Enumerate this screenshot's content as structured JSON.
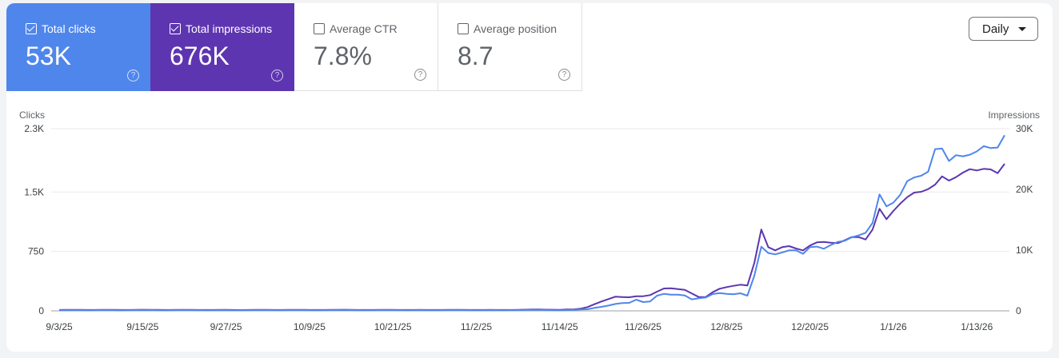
{
  "metrics": [
    {
      "label": "Total clicks",
      "value": "53K",
      "checked": true,
      "color": "#4f86ec"
    },
    {
      "label": "Total impressions",
      "value": "676K",
      "checked": true,
      "color": "#5e35b1"
    },
    {
      "label": "Average CTR",
      "value": "7.8%",
      "checked": false
    },
    {
      "label": "Average position",
      "value": "8.7",
      "checked": false
    }
  ],
  "help_glyph": "?",
  "granularity": {
    "selected": "Daily"
  },
  "chart_data": {
    "type": "line",
    "left_axis": {
      "label": "Clicks",
      "ticks": [
        "0",
        "750",
        "1.5K",
        "2.3K"
      ],
      "tick_values": [
        0,
        750,
        1500,
        2300
      ],
      "range": [
        0,
        2300
      ]
    },
    "right_axis": {
      "label": "Impressions",
      "ticks": [
        "0",
        "10K",
        "20K",
        "30K"
      ],
      "tick_values": [
        0,
        10000,
        20000,
        30000
      ],
      "range": [
        0,
        30000
      ]
    },
    "x_ticks": [
      "9/3/25",
      "9/15/25",
      "9/27/25",
      "10/9/25",
      "10/21/25",
      "11/2/25",
      "11/14/25",
      "11/26/25",
      "12/8/25",
      "12/20/25",
      "1/1/26",
      "1/13/26"
    ],
    "grid": true,
    "dates": [
      "9/3/25",
      "9/4/25",
      "9/5/25",
      "9/6/25",
      "9/7/25",
      "9/8/25",
      "9/9/25",
      "9/10/25",
      "9/11/25",
      "9/12/25",
      "9/13/25",
      "9/14/25",
      "9/15/25",
      "9/16/25",
      "9/17/25",
      "9/18/25",
      "9/19/25",
      "9/20/25",
      "9/21/25",
      "9/22/25",
      "9/23/25",
      "9/24/25",
      "9/25/25",
      "9/26/25",
      "9/27/25",
      "9/28/25",
      "9/29/25",
      "9/30/25",
      "10/1/25",
      "10/2/25",
      "10/3/25",
      "10/4/25",
      "10/5/25",
      "10/6/25",
      "10/7/25",
      "10/8/25",
      "10/9/25",
      "10/10/25",
      "10/11/25",
      "10/12/25",
      "10/13/25",
      "10/14/25",
      "10/15/25",
      "10/16/25",
      "10/17/25",
      "10/18/25",
      "10/19/25",
      "10/20/25",
      "10/21/25",
      "10/22/25",
      "10/23/25",
      "10/24/25",
      "10/25/25",
      "10/26/25",
      "10/27/25",
      "10/28/25",
      "10/29/25",
      "10/30/25",
      "10/31/25",
      "11/1/25",
      "11/2/25",
      "11/3/25",
      "11/4/25",
      "11/5/25",
      "11/6/25",
      "11/7/25",
      "11/8/25",
      "11/9/25",
      "11/10/25",
      "11/11/25",
      "11/12/25",
      "11/13/25",
      "11/14/25",
      "11/15/25",
      "11/16/25",
      "11/17/25",
      "11/18/25",
      "11/19/25",
      "11/20/25",
      "11/21/25",
      "11/22/25",
      "11/23/25",
      "11/24/25",
      "11/25/25",
      "11/26/25",
      "11/27/25",
      "11/28/25",
      "11/29/25",
      "11/30/25",
      "12/1/25",
      "12/2/25",
      "12/3/25",
      "12/4/25",
      "12/5/25",
      "12/6/25",
      "12/7/25",
      "12/8/25",
      "12/9/25",
      "12/10/25",
      "12/11/25",
      "12/12/25",
      "12/13/25",
      "12/14/25",
      "12/15/25",
      "12/16/25",
      "12/17/25",
      "12/18/25",
      "12/19/25",
      "12/20/25",
      "12/21/25",
      "12/22/25",
      "12/23/25",
      "12/24/25",
      "12/25/25",
      "12/26/25",
      "12/27/25",
      "12/28/25",
      "12/29/25",
      "12/30/25",
      "12/31/25",
      "1/1/26",
      "1/2/26",
      "1/3/26",
      "1/4/26",
      "1/5/26",
      "1/6/26",
      "1/7/26",
      "1/8/26",
      "1/9/26",
      "1/10/26",
      "1/11/26",
      "1/12/26",
      "1/13/26",
      "1/14/26",
      "1/15/26",
      "1/16/26",
      "1/17/26"
    ],
    "series": [
      {
        "name": "Clicks",
        "axis": "left",
        "color": "#4f86ec",
        "values": [
          8,
          9,
          10,
          9,
          8,
          9,
          10,
          11,
          9,
          8,
          9,
          10,
          12,
          11,
          9,
          8,
          9,
          10,
          11,
          10,
          9,
          8,
          9,
          10,
          9,
          8,
          8,
          9,
          10,
          11,
          10,
          9,
          9,
          10,
          11,
          10,
          9,
          8,
          9,
          10,
          11,
          12,
          10,
          9,
          8,
          9,
          10,
          11,
          10,
          9,
          8,
          9,
          10,
          9,
          8,
          9,
          10,
          11,
          10,
          9,
          8,
          9,
          10,
          9,
          8,
          9,
          10,
          12,
          14,
          13,
          11,
          9,
          7,
          10,
          13,
          17,
          20,
          37,
          50,
          67,
          87,
          98,
          101,
          141,
          111,
          118,
          192,
          215,
          205,
          205,
          195,
          145,
          158,
          168,
          212,
          225,
          215,
          209,
          222,
          192,
          444,
          810,
          730,
          713,
          737,
          764,
          764,
          720,
          804,
          811,
          784,
          831,
          871,
          885,
          928,
          952,
          986,
          1110,
          1470,
          1319,
          1366,
          1467,
          1638,
          1685,
          1706,
          1756,
          2042,
          2049,
          1891,
          1965,
          1951,
          1971,
          2012,
          2079,
          2055,
          2062,
          2217
        ]
      },
      {
        "name": "Impressions",
        "axis": "right",
        "color": "#5b36b0",
        "values": [
          150,
          160,
          170,
          155,
          140,
          150,
          165,
          175,
          160,
          145,
          150,
          160,
          180,
          170,
          155,
          140,
          150,
          165,
          170,
          160,
          150,
          140,
          150,
          160,
          155,
          140,
          135,
          150,
          165,
          175,
          165,
          150,
          150,
          160,
          170,
          165,
          150,
          140,
          150,
          165,
          175,
          185,
          165,
          150,
          140,
          150,
          160,
          170,
          165,
          150,
          140,
          150,
          160,
          150,
          140,
          150,
          165,
          175,
          165,
          150,
          140,
          150,
          160,
          150,
          140,
          150,
          170,
          200,
          240,
          230,
          200,
          180,
          175,
          219,
          219,
          351,
          614,
          1097,
          1535,
          1930,
          2325,
          2281,
          2237,
          2412,
          2412,
          2588,
          3158,
          3684,
          3728,
          3597,
          3465,
          2851,
          2281,
          2281,
          3070,
          3640,
          3904,
          4123,
          4298,
          4167,
          7895,
          13400,
          10483,
          9956,
          10483,
          10658,
          10263,
          9956,
          10746,
          11272,
          11360,
          11228,
          11140,
          11623,
          12149,
          12149,
          11754,
          13377,
          16798,
          15088,
          16448,
          17676,
          18728,
          19474,
          19605,
          20044,
          20790,
          22149,
          21448,
          22017,
          22763,
          23334,
          23114,
          23377,
          23290,
          22676,
          24211
        ]
      }
    ]
  }
}
